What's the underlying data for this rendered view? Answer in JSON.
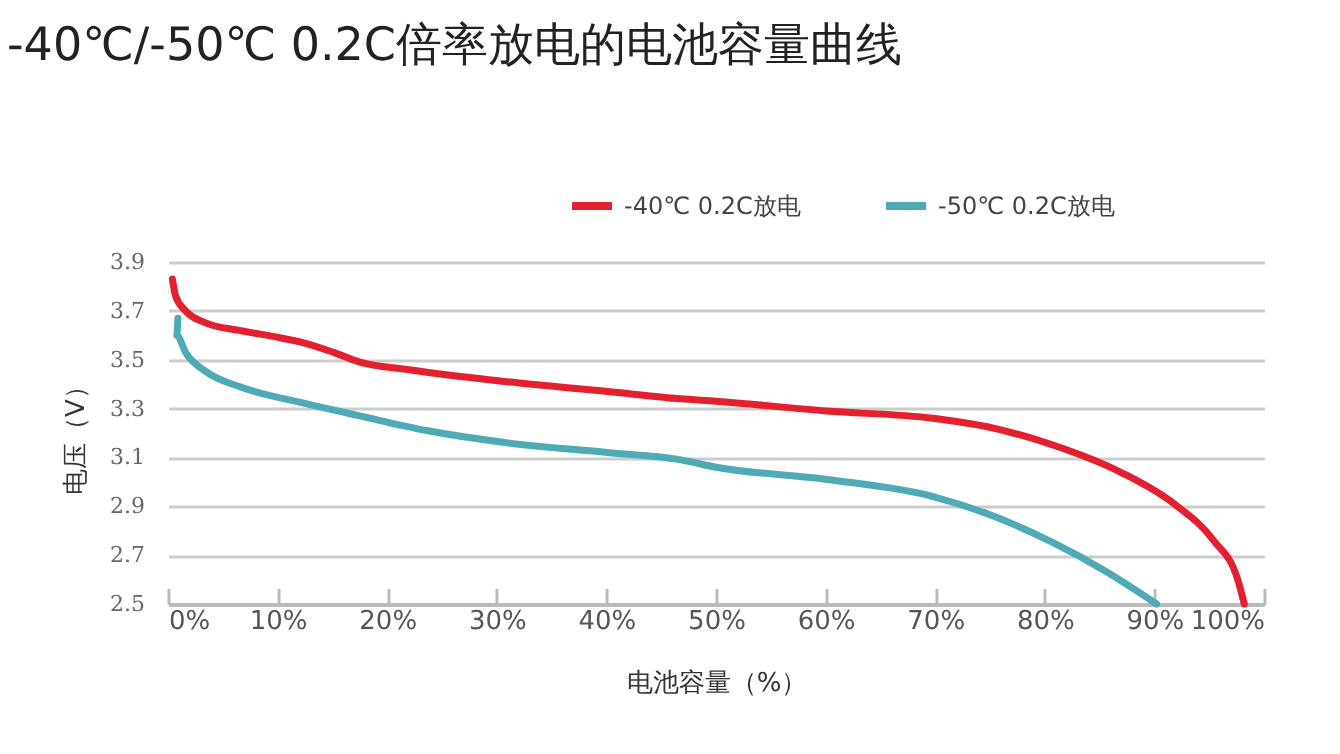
{
  "chart_data": {
    "type": "line",
    "title": "-40℃/-50℃ 0.2C倍率放电的电池容量曲线",
    "xlabel": "电池容量（%）",
    "ylabel": "电压（V）",
    "xlim": [
      0,
      100
    ],
    "xticks": [
      {
        "value": 0,
        "label": "0%"
      },
      {
        "value": 10,
        "label": "10%"
      },
      {
        "value": 20,
        "label": "20%"
      },
      {
        "value": 30,
        "label": "30%"
      },
      {
        "value": 40,
        "label": "40%"
      },
      {
        "value": 50,
        "label": "50%"
      },
      {
        "value": 60,
        "label": "60%"
      },
      {
        "value": 70,
        "label": "70%"
      },
      {
        "value": 80,
        "label": "80%"
      },
      {
        "value": 90,
        "label": "90%"
      },
      {
        "value": 100,
        "label": "100%"
      }
    ],
    "ylim": [
      2.5,
      3.9
    ],
    "yticks": [
      {
        "value": 2.5,
        "label": "2.5"
      },
      {
        "value": 2.7,
        "label": "2.7"
      },
      {
        "value": 2.9,
        "label": "2.9"
      },
      {
        "value": 3.1,
        "label": "3.1"
      },
      {
        "value": 3.3,
        "label": "3.3"
      },
      {
        "value": 3.5,
        "label": "3.5"
      },
      {
        "value": 3.7,
        "label": "3.7"
      },
      {
        "value": 3.9,
        "label": "3.9"
      }
    ],
    "grid": "y",
    "legend": "top right",
    "marker": "none",
    "line_style": "solid",
    "series": [
      {
        "name": "-40℃  0.2C放电",
        "color": "#e3202d",
        "x": [
          0.4,
          0.7,
          1.6,
          3.5,
          6.5,
          10.2,
          12.3,
          15.1,
          17.5,
          21.8,
          30.9,
          40.1,
          46.8,
          50,
          60.1,
          69.8,
          75.3,
          80.8,
          86.9,
          91.8,
          95.4,
          97.6,
          98.2
        ],
        "values": [
          3.83,
          3.76,
          3.7,
          3.65,
          3.62,
          3.59,
          3.57,
          3.53,
          3.49,
          3.46,
          3.41,
          3.37,
          3.34,
          3.33,
          3.29,
          3.26,
          3.22,
          3.15,
          3.04,
          2.91,
          2.76,
          2.6,
          2.5
        ]
      },
      {
        "name": "-50℃  0.2C放电",
        "color": "#4eabb5",
        "x": [
          0.9,
          0.8,
          1.6,
          3.5,
          6.5,
          12.6,
          17.5,
          23.6,
          30.9,
          40.1,
          46.8,
          50,
          60.1,
          69.8,
          75.3,
          80.8,
          85.7,
          90.2
        ],
        "values": [
          3.67,
          3.6,
          3.53,
          3.45,
          3.39,
          3.32,
          3.27,
          3.21,
          3.16,
          3.12,
          3.09,
          3.06,
          3.01,
          2.94,
          2.86,
          2.75,
          2.63,
          2.5
        ]
      }
    ]
  }
}
